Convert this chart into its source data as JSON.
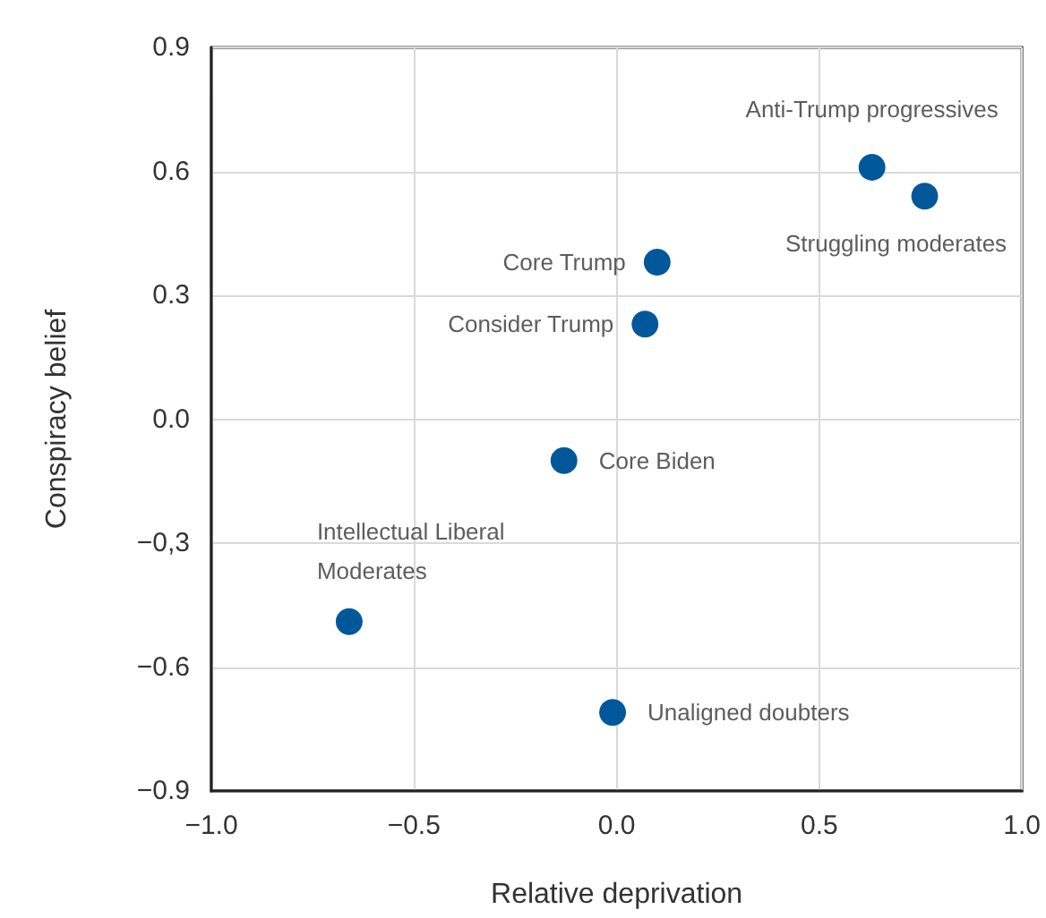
{
  "chart_data": {
    "type": "scatter",
    "xlabel": "Relative deprivation",
    "ylabel": "Conspiracy belief",
    "x": [
      0.63,
      0.76,
      0.1,
      0.07,
      -0.13,
      -0.66,
      -0.01
    ],
    "values": [
      0.61,
      0.54,
      0.38,
      0.23,
      -0.1,
      -0.49,
      -0.71
    ],
    "color": "#00589b",
    "marker": "circle",
    "annotations": [
      {
        "text": "Anti-Trump progressives",
        "x": 0.63,
        "y": 0.61
      },
      {
        "text": "Struggling moderates",
        "x": 0.76,
        "y": 0.54
      },
      {
        "text": "Core Trump",
        "x": 0.1,
        "y": 0.38
      },
      {
        "text": "Consider Trump",
        "x": 0.07,
        "y": 0.23
      },
      {
        "text": "Core Biden",
        "x": -0.13,
        "y": -0.1
      },
      {
        "text": "Intellectual Liberal\nModerates",
        "x": -0.66,
        "y": -0.49
      },
      {
        "text": "Unaligned doubters",
        "x": -0.01,
        "y": -0.71
      }
    ],
    "xlim": [
      -1.0,
      1.0
    ],
    "xticks": [
      {
        "value": -1.0,
        "label": "−1.0"
      },
      {
        "value": -0.5,
        "label": "−0.5"
      },
      {
        "value": 0,
        "label": "0.0"
      },
      {
        "value": 0.5,
        "label": "0.5"
      },
      {
        "value": 1.0,
        "label": "1.0"
      }
    ],
    "ylim": [
      -0.9,
      0.9
    ],
    "yticks": [
      {
        "value": -0.9,
        "label": "−0.9"
      },
      {
        "value": -0.6,
        "label": "−0.6"
      },
      {
        "value": -0.3,
        "label": "−0,3"
      },
      {
        "value": 0,
        "label": "0.0"
      },
      {
        "value": 0.3,
        "label": "0.3"
      },
      {
        "value": 0.6,
        "label": "0.6"
      },
      {
        "value": 0.9,
        "label": "0.9"
      }
    ],
    "grid": true
  }
}
